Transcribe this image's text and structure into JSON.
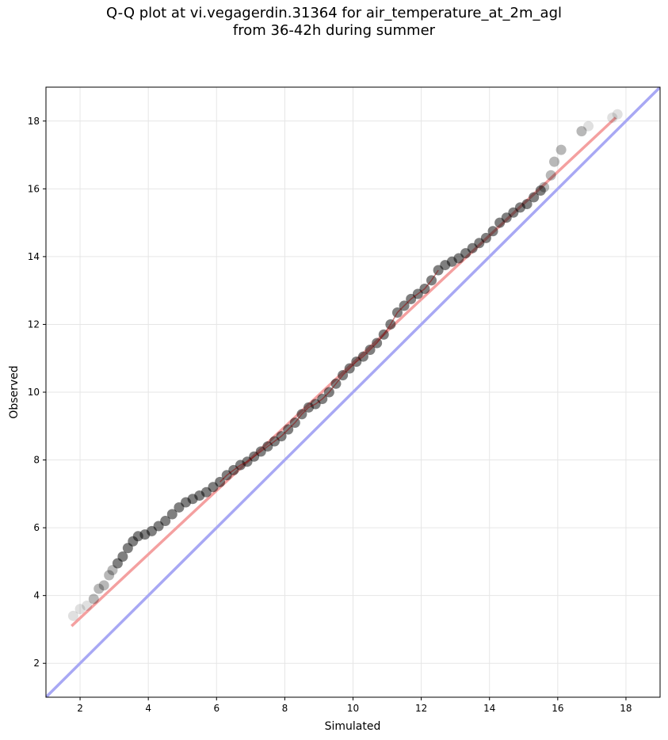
{
  "chart_data": {
    "type": "scatter",
    "title_line1": "Q-Q plot at vi.vegagerdin.31364 for air_temperature_at_2m_agl",
    "title_line2": "from 36-42h during summer",
    "xlabel": "Simulated",
    "ylabel": "Observed",
    "xlim": [
      1.0,
      19.0
    ],
    "ylim": [
      1.0,
      19.0
    ],
    "xticks": [
      2,
      4,
      6,
      8,
      10,
      12,
      14,
      16,
      18
    ],
    "yticks": [
      2,
      4,
      6,
      8,
      10,
      12,
      14,
      16,
      18
    ],
    "grid": true,
    "colors": {
      "points": "#000000",
      "fit_line": "#f4a0a0",
      "identity_line": "#a8a8f4",
      "center_line": "#8b0000",
      "grid": "#e6e6e6"
    },
    "fit_line": {
      "x": [
        1.75,
        17.7
      ],
      "y": [
        3.1,
        18.1
      ]
    },
    "identity_line": {
      "x": [
        1.0,
        19.0
      ],
      "y": [
        1.0,
        19.0
      ]
    },
    "points": {
      "x": [
        1.8,
        2.0,
        2.2,
        2.4,
        2.55,
        2.7,
        2.85,
        2.95,
        3.1,
        3.25,
        3.4,
        3.55,
        3.7,
        3.9,
        4.1,
        4.3,
        4.5,
        4.7,
        4.9,
        5.1,
        5.3,
        5.5,
        5.7,
        5.9,
        6.1,
        6.3,
        6.5,
        6.7,
        6.9,
        7.1,
        7.3,
        7.5,
        7.7,
        7.9,
        8.1,
        8.3,
        8.5,
        8.7,
        8.9,
        9.1,
        9.3,
        9.5,
        9.7,
        9.9,
        10.1,
        10.3,
        10.5,
        10.7,
        10.9,
        11.1,
        11.3,
        11.5,
        11.7,
        11.9,
        12.1,
        12.3,
        12.5,
        12.7,
        12.9,
        13.1,
        13.3,
        13.5,
        13.7,
        13.9,
        14.1,
        14.3,
        14.5,
        14.7,
        14.9,
        15.1,
        15.3,
        15.5,
        15.6,
        15.8,
        15.9,
        16.1,
        16.7,
        16.9,
        17.6,
        17.75
      ],
      "y": [
        3.4,
        3.6,
        3.7,
        3.9,
        4.2,
        4.3,
        4.6,
        4.75,
        4.95,
        5.15,
        5.4,
        5.6,
        5.75,
        5.8,
        5.9,
        6.05,
        6.2,
        6.4,
        6.6,
        6.75,
        6.85,
        6.95,
        7.05,
        7.2,
        7.35,
        7.55,
        7.7,
        7.85,
        7.95,
        8.1,
        8.25,
        8.4,
        8.55,
        8.7,
        8.9,
        9.1,
        9.35,
        9.55,
        9.65,
        9.8,
        10.0,
        10.25,
        10.5,
        10.7,
        10.9,
        11.05,
        11.25,
        11.45,
        11.7,
        12.0,
        12.35,
        12.55,
        12.75,
        12.9,
        13.05,
        13.3,
        13.6,
        13.75,
        13.85,
        13.95,
        14.1,
        14.25,
        14.4,
        14.55,
        14.75,
        15.0,
        15.15,
        15.3,
        15.45,
        15.55,
        15.75,
        15.95,
        16.05,
        16.4,
        16.8,
        17.15,
        17.7,
        17.85,
        18.1,
        18.2
      ]
    }
  }
}
